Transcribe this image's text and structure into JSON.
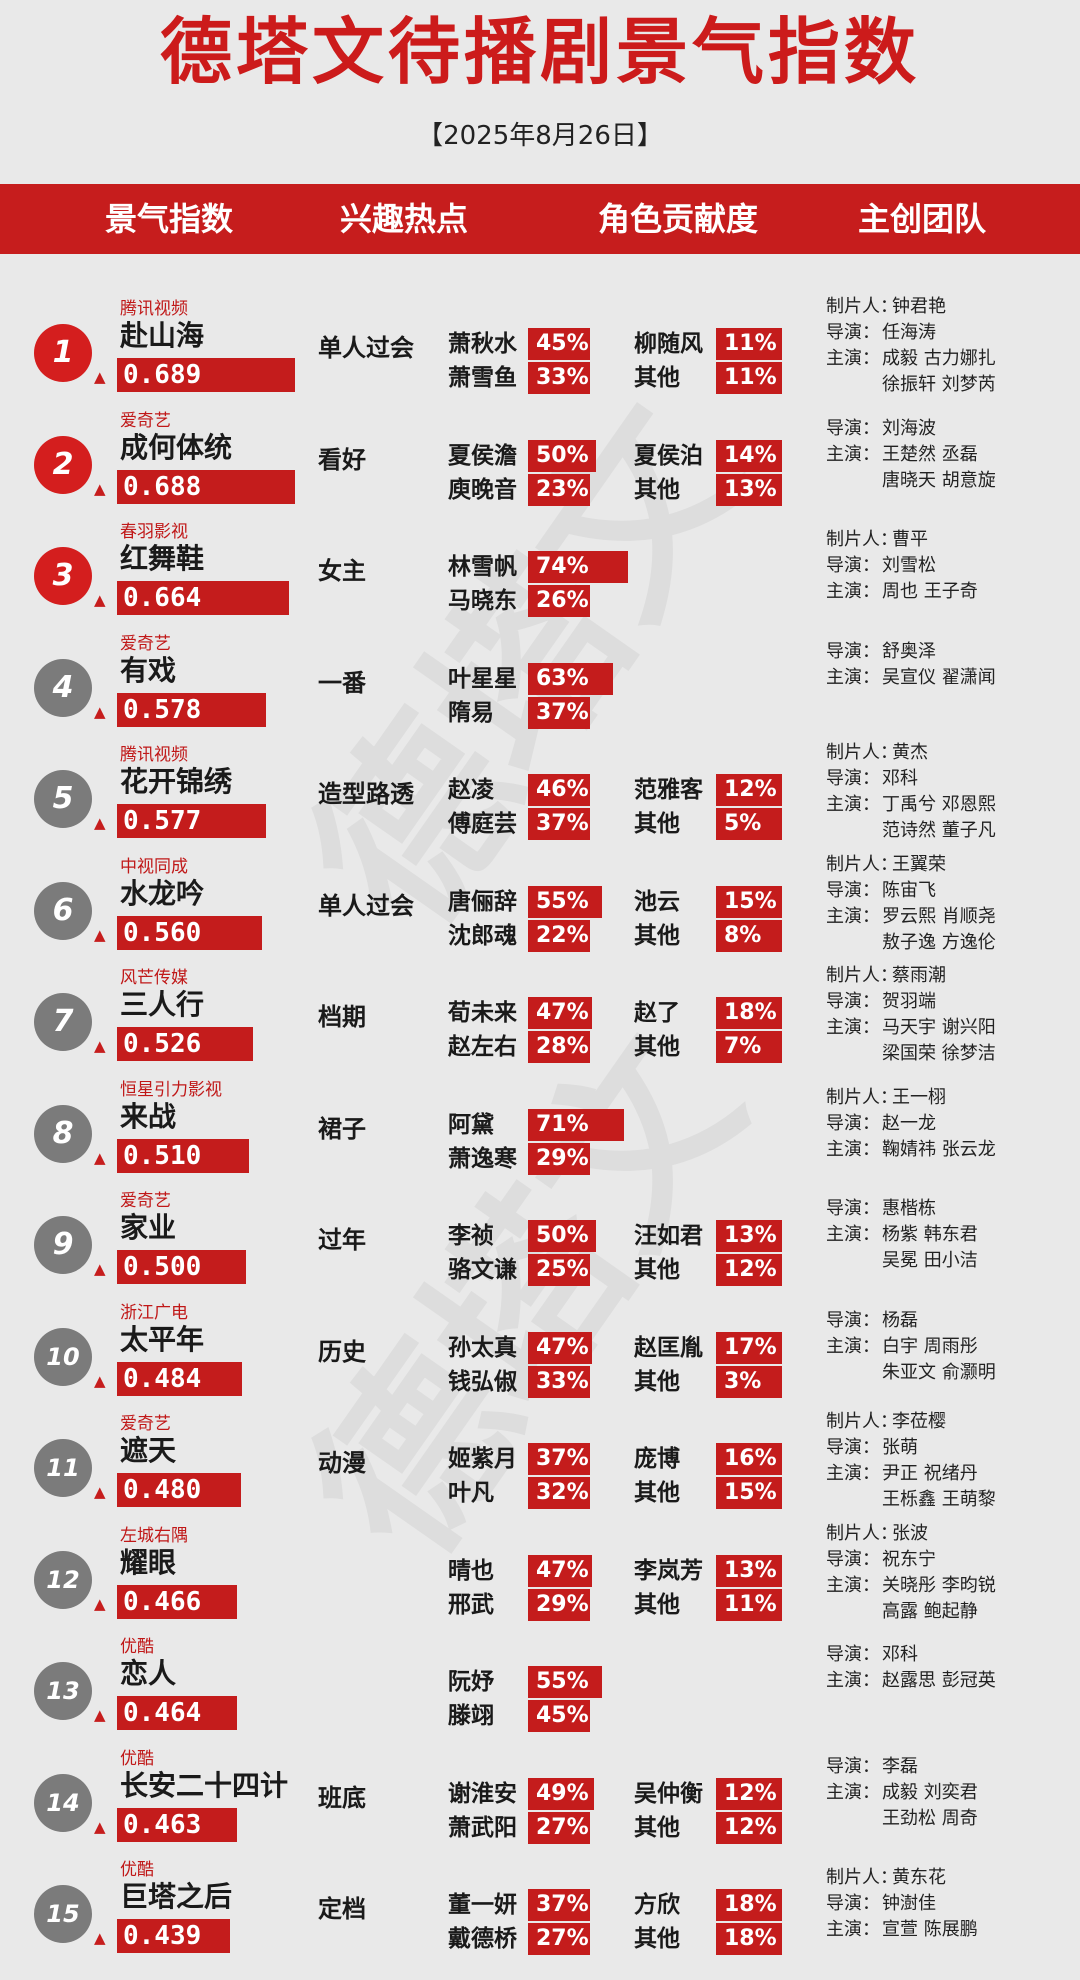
{
  "title": "德塔文待播剧景气指数",
  "date": "【2025年8月26日】",
  "header": [
    "景气指数",
    "兴趣热点",
    "角色贡献度",
    "主创团队"
  ],
  "watermark": "德塔文",
  "chart_data": {
    "type": "table",
    "title": "德塔文待播剧景气指数",
    "rows": [
      {
        "rank": "1",
        "platform": "腾讯视频",
        "title": "赴山海",
        "score": 0.689,
        "score_label": "0.689",
        "hotspot": "单人过会",
        "roles": [
          [
            "萧秋水",
            45
          ],
          [
            "柳随风",
            11
          ],
          [
            "萧雪鱼",
            33
          ],
          [
            "其他",
            11
          ]
        ],
        "team": [
          [
            "制片人：",
            "钟君艳"
          ],
          [
            "导演：",
            "任海涛"
          ],
          [
            "主演：",
            "成毅  古力娜扎"
          ],
          [
            "",
            "徐振轩  刘梦芮"
          ]
        ]
      },
      {
        "rank": "2",
        "platform": "爱奇艺",
        "title": "成何体统",
        "score": 0.688,
        "score_label": "0.688",
        "hotspot": "看好",
        "roles": [
          [
            "夏侯澹",
            50
          ],
          [
            "夏侯泊",
            14
          ],
          [
            "庾晚音",
            23
          ],
          [
            "其他",
            13
          ]
        ],
        "team": [
          [
            "导演：",
            "刘海波"
          ],
          [
            "主演：",
            "王楚然  丞磊"
          ],
          [
            "",
            "唐晓天  胡意旋"
          ]
        ]
      },
      {
        "rank": "3",
        "platform": "春羽影视",
        "title": "红舞鞋",
        "score": 0.664,
        "score_label": "0.664",
        "hotspot": "女主",
        "roles": [
          [
            "林雪帆",
            74
          ],
          null,
          [
            "马晓东",
            26
          ],
          null
        ],
        "team": [
          [
            "制片人：",
            "曹平"
          ],
          [
            "导演：",
            "刘雪松"
          ],
          [
            "主演：",
            "周也  王子奇"
          ]
        ]
      },
      {
        "rank": "4",
        "platform": "爱奇艺",
        "title": "有戏",
        "score": 0.578,
        "score_label": "0.578",
        "hotspot": "一番",
        "roles": [
          [
            "叶星星",
            63
          ],
          null,
          [
            "隋易",
            37
          ],
          null
        ],
        "team": [
          [
            "导演：",
            "舒奥泽"
          ],
          [
            "主演：",
            "吴宣仪  翟潇闻"
          ]
        ]
      },
      {
        "rank": "5",
        "platform": "腾讯视频",
        "title": "花开锦绣",
        "score": 0.577,
        "score_label": "0.577",
        "hotspot": "造型路透",
        "roles": [
          [
            "赵凌",
            46
          ],
          [
            "范雅客",
            12
          ],
          [
            "傅庭芸",
            37
          ],
          [
            "其他",
            5
          ]
        ],
        "team": [
          [
            "制片人：",
            "黄杰"
          ],
          [
            "导演：",
            "邓科"
          ],
          [
            "主演：",
            "丁禹兮  邓恩熙"
          ],
          [
            "",
            "范诗然  董子凡"
          ]
        ]
      },
      {
        "rank": "6",
        "platform": "中视同成",
        "title": "水龙吟",
        "score": 0.56,
        "score_label": "0.560",
        "hotspot": "单人过会",
        "roles": [
          [
            "唐俪辞",
            55
          ],
          [
            "池云",
            15
          ],
          [
            "沈郎魂",
            22
          ],
          [
            "其他",
            8
          ]
        ],
        "team": [
          [
            "制片人：",
            "王翼荣"
          ],
          [
            "导演：",
            "陈宙飞"
          ],
          [
            "主演：",
            "罗云熙  肖顺尧"
          ],
          [
            "",
            "敖子逸  方逸伦"
          ]
        ]
      },
      {
        "rank": "7",
        "platform": "风芒传媒",
        "title": "三人行",
        "score": 0.526,
        "score_label": "0.526",
        "hotspot": "档期",
        "roles": [
          [
            "荀未来",
            47
          ],
          [
            "赵了",
            18
          ],
          [
            "赵左右",
            28
          ],
          [
            "其他",
            7
          ]
        ],
        "team": [
          [
            "制片人：",
            "蔡雨潮"
          ],
          [
            "导演：",
            "贺羽端"
          ],
          [
            "主演：",
            "马天宇  谢兴阳"
          ],
          [
            "",
            "梁国荣  徐梦洁"
          ]
        ]
      },
      {
        "rank": "8",
        "platform": "恒星引力影视",
        "title": "来战",
        "score": 0.51,
        "score_label": "0.510",
        "hotspot": "裙子",
        "roles": [
          [
            "阿黛",
            71
          ],
          null,
          [
            "萧逸寒",
            29
          ],
          null
        ],
        "team": [
          [
            "制片人：",
            "王一栩"
          ],
          [
            "导演：",
            "赵一龙"
          ],
          [
            "主演：",
            "鞠婧祎  张云龙"
          ]
        ]
      },
      {
        "rank": "9",
        "platform": "爱奇艺",
        "title": "家业",
        "score": 0.5,
        "score_label": "0.500",
        "hotspot": "过年",
        "roles": [
          [
            "李祯",
            50
          ],
          [
            "汪如君",
            13
          ],
          [
            "骆文谦",
            25
          ],
          [
            "其他",
            12
          ]
        ],
        "team": [
          [
            "导演：",
            "惠楷栋"
          ],
          [
            "主演：",
            "杨紫  韩东君"
          ],
          [
            "",
            "吴冕  田小洁"
          ]
        ]
      },
      {
        "rank": "10",
        "platform": "浙江广电",
        "title": "太平年",
        "score": 0.484,
        "score_label": "0.484",
        "hotspot": "历史",
        "roles": [
          [
            "孙太真",
            47
          ],
          [
            "赵匡胤",
            17
          ],
          [
            "钱弘俶",
            33
          ],
          [
            "其他",
            3
          ]
        ],
        "team": [
          [
            "导演：",
            "杨磊"
          ],
          [
            "主演：",
            "白宇  周雨彤"
          ],
          [
            "",
            "朱亚文  俞灏明"
          ]
        ]
      },
      {
        "rank": "11",
        "platform": "爱奇艺",
        "title": "遮天",
        "score": 0.48,
        "score_label": "0.480",
        "hotspot": "动漫",
        "roles": [
          [
            "姬紫月",
            37
          ],
          [
            "庞博",
            16
          ],
          [
            "叶凡",
            32
          ],
          [
            "其他",
            15
          ]
        ],
        "team": [
          [
            "制片人：",
            "李莅樱"
          ],
          [
            "导演：",
            "张萌"
          ],
          [
            "主演：",
            "尹正  祝绪丹"
          ],
          [
            "",
            "王栎鑫  王萌黎"
          ]
        ]
      },
      {
        "rank": "12",
        "platform": "左城右隅",
        "title": "耀眼",
        "score": 0.466,
        "score_label": "0.466",
        "hotspot": "",
        "roles": [
          [
            "晴也",
            47
          ],
          [
            "李岚芳",
            13
          ],
          [
            "邢武",
            29
          ],
          [
            "其他",
            11
          ]
        ],
        "team": [
          [
            "制片人：",
            "张波"
          ],
          [
            "导演：",
            "祝东宁"
          ],
          [
            "主演：",
            "关晓彤  李昀锐"
          ],
          [
            "",
            "高露  鲍起静"
          ]
        ]
      },
      {
        "rank": "13",
        "platform": "优酷",
        "title": "恋人",
        "score": 0.464,
        "score_label": "0.464",
        "hotspot": "",
        "roles": [
          [
            "阮妤",
            55
          ],
          null,
          [
            "滕翊",
            45
          ],
          null
        ],
        "team": [
          [
            "导演：",
            "邓科"
          ],
          [
            "主演：",
            "赵露思  彭冠英"
          ]
        ]
      },
      {
        "rank": "14",
        "platform": "优酷",
        "title": "长安二十四计",
        "score": 0.463,
        "score_label": "0.463",
        "hotspot": "班底",
        "roles": [
          [
            "谢淮安",
            49
          ],
          [
            "吴仲衡",
            12
          ],
          [
            "萧武阳",
            27
          ],
          [
            "其他",
            12
          ]
        ],
        "team": [
          [
            "导演：",
            "李磊"
          ],
          [
            "主演：",
            "成毅  刘奕君"
          ],
          [
            "",
            "王劲松  周奇"
          ]
        ]
      },
      {
        "rank": "15",
        "platform": "优酷",
        "title": "巨塔之后",
        "score": 0.439,
        "score_label": "0.439",
        "hotspot": "定档",
        "roles": [
          [
            "董一妍",
            37
          ],
          [
            "方欣",
            18
          ],
          [
            "戴德桥",
            27
          ],
          [
            "其他",
            18
          ]
        ],
        "team": [
          [
            "制片人：",
            "黄东花"
          ],
          [
            "导演：",
            "钟澍佳"
          ],
          [
            "主演：",
            "宣萱  陈展鹏"
          ]
        ]
      }
    ]
  }
}
